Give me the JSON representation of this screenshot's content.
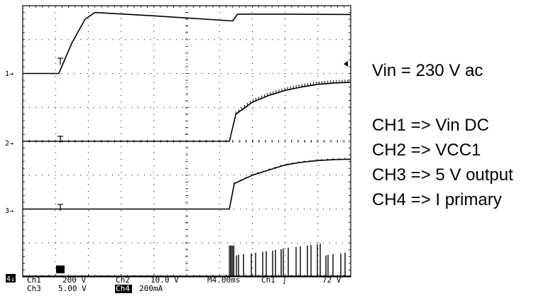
{
  "chart_data": {
    "type": "line",
    "title": "",
    "grid": true,
    "x_divisions": 10,
    "y_divisions": 8,
    "time_per_div_ms": 4.0,
    "channels": [
      {
        "id": "1",
        "marker": "1",
        "name": "Vin DC",
        "scale": "200 V",
        "x_div": [
          0,
          1.1,
          1.5,
          1.9,
          2.2,
          4.0,
          6.4,
          6.55,
          8.0,
          10.0
        ],
        "y_div": [
          6.0,
          6.0,
          6.9,
          7.6,
          7.8,
          7.7,
          7.55,
          7.75,
          7.75,
          7.74
        ]
      },
      {
        "id": "2",
        "marker": "2",
        "name": "VCC1",
        "scale": "10.0 V",
        "x_div": [
          0,
          6.3,
          6.5,
          7.0,
          7.5,
          8.0,
          8.5,
          9.0,
          9.5,
          10.0
        ],
        "y_div": [
          4.0,
          4.0,
          4.8,
          5.15,
          5.35,
          5.5,
          5.6,
          5.68,
          5.72,
          5.74
        ]
      },
      {
        "id": "3",
        "marker": "3",
        "name": "5 V output",
        "scale": "5.00 V",
        "x_div": [
          0,
          6.3,
          6.45,
          7.0,
          7.5,
          8.0,
          8.5,
          9.0,
          9.5,
          10.0
        ],
        "y_div": [
          2.0,
          2.0,
          2.75,
          3.0,
          3.15,
          3.3,
          3.38,
          3.43,
          3.46,
          3.47
        ]
      },
      {
        "id": "4",
        "marker": "4",
        "name": "I primary",
        "scale": "200mA",
        "base_div": 0,
        "pulse_start_div": 6.3,
        "pulse_end_div": 10.0
      }
    ],
    "trigger": {
      "source": "Ch1",
      "level": "72 V",
      "slope": "rising"
    }
  },
  "legend": {
    "vin": "Vin = 230 V ac",
    "ch1": "CH1 => Vin DC",
    "ch2": "CH2 => VCC1",
    "ch3": "CH3 => 5 V output",
    "ch4": "CH4 => I primary"
  },
  "readout": {
    "ch1_label": "Ch1",
    "ch1_value": "200 V",
    "ch2_label": "Ch2",
    "ch2_value": "10.0 V",
    "ch3_label": "Ch3",
    "ch3_value": "5.00 V",
    "ch4_label": "Ch4",
    "ch4_value": "200mA",
    "timebase": "M4.00ms",
    "trigger_source": "Ch1",
    "trigger_symbol": "∫",
    "trigger_level": "72 V"
  },
  "markers": {
    "ch1": "1→",
    "ch2": "2→",
    "ch3": "3→",
    "ch4": "4↓"
  },
  "colors": {
    "trace": "#000000",
    "grid": "#000000",
    "background": "#ffffff"
  }
}
